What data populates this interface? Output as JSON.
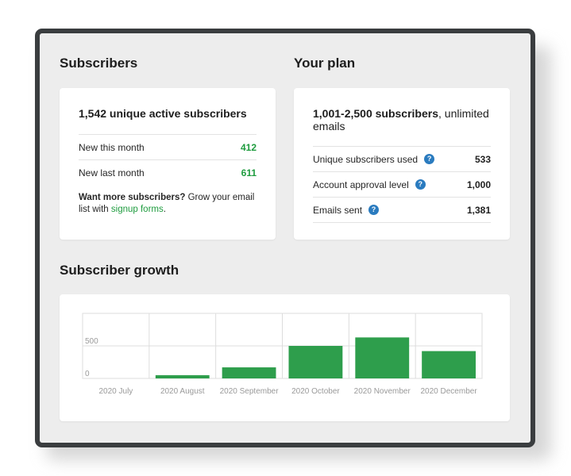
{
  "subscribers": {
    "title": "Subscribers",
    "headline": "1,542 unique active subscribers",
    "rows": [
      {
        "label": "New this month",
        "value": "412"
      },
      {
        "label": "New last month",
        "value": "611"
      }
    ],
    "promo_bold": "Want more subscribers?",
    "promo_text": " Grow your email list with ",
    "promo_link": "signup forms",
    "promo_end": "."
  },
  "plan": {
    "title": "Your plan",
    "headline_bold": "1,001-2,500 subscribers",
    "headline_rest": ", unlimited emails",
    "rows": [
      {
        "label": "Unique subscribers used",
        "value": "533"
      },
      {
        "label": "Account approval level",
        "value": "1,000"
      },
      {
        "label": "Emails sent",
        "value": "1,381"
      }
    ],
    "help_glyph": "?"
  },
  "growth": {
    "title": "Subscriber growth"
  },
  "chart_data": {
    "type": "bar",
    "categories": [
      "2020 July",
      "2020 August",
      "2020 September",
      "2020 October",
      "2020 November",
      "2020 December"
    ],
    "values": [
      0,
      50,
      170,
      500,
      630,
      420
    ],
    "y_ticks": [
      {
        "value": 0,
        "label": "0"
      },
      {
        "value": 500,
        "label": "500"
      }
    ],
    "ylim": [
      0,
      1000
    ],
    "grid": true,
    "colors": {
      "bar": "#2e9e4c",
      "grid": "#dddddd",
      "tick_text": "#9a9a9a"
    }
  },
  "colors": {
    "accent_green": "#1f9c3f",
    "help_blue": "#2a7bbf",
    "frame": "#3a3d3f",
    "background": "#ededed"
  }
}
